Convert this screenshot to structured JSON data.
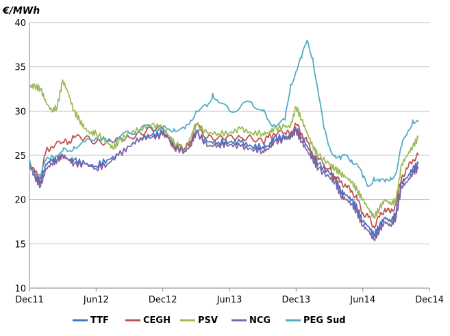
{
  "chart_data": {
    "type": "line",
    "title": "",
    "ylabel": "€/MWh",
    "xlabel": "",
    "ylim": [
      10,
      40
    ],
    "yticks": [
      10,
      15,
      20,
      25,
      30,
      35,
      40
    ],
    "xlim": [
      0,
      36
    ],
    "xticks": [
      {
        "label": "Dec11",
        "x": 0
      },
      {
        "label": "Jun12",
        "x": 6
      },
      {
        "label": "Dec12",
        "x": 12
      },
      {
        "label": "Jun13",
        "x": 18
      },
      {
        "label": "Dec13",
        "x": 24
      },
      {
        "label": "Jun14",
        "x": 30
      },
      {
        "label": "Dec14",
        "x": 36
      }
    ],
    "grid": true,
    "legend": "bottom",
    "series": [
      {
        "name": "TTF",
        "color": "#4472c4",
        "points": [
          [
            0,
            24
          ],
          [
            0.5,
            22.8
          ],
          [
            1,
            22
          ],
          [
            1.5,
            24
          ],
          [
            2,
            24.5
          ],
          [
            2.5,
            24.5
          ],
          [
            3,
            25
          ],
          [
            3.5,
            24.5
          ],
          [
            4,
            24.5
          ],
          [
            5,
            24
          ],
          [
            6,
            23.8
          ],
          [
            7,
            24.5
          ],
          [
            8,
            25
          ],
          [
            9,
            26
          ],
          [
            10,
            27
          ],
          [
            11,
            27.3
          ],
          [
            12,
            27.5
          ],
          [
            12.5,
            27
          ],
          [
            13,
            26
          ],
          [
            14,
            25.8
          ],
          [
            14.5,
            26.5
          ],
          [
            15,
            27.5
          ],
          [
            16,
            26.5
          ],
          [
            17,
            26.5
          ],
          [
            18,
            26.5
          ],
          [
            19,
            26.5
          ],
          [
            20,
            26
          ],
          [
            21,
            26
          ],
          [
            21.5,
            26
          ],
          [
            22,
            27
          ],
          [
            23,
            27
          ],
          [
            23.5,
            27.2
          ],
          [
            24,
            28
          ],
          [
            24.5,
            27
          ],
          [
            25,
            26
          ],
          [
            25.5,
            25
          ],
          [
            26,
            24
          ],
          [
            27,
            23
          ],
          [
            27.5,
            22.5
          ],
          [
            28,
            21
          ],
          [
            28.5,
            20.5
          ],
          [
            29,
            20
          ],
          [
            29.5,
            19
          ],
          [
            30,
            17.5
          ],
          [
            30.5,
            17
          ],
          [
            31,
            16
          ],
          [
            31.5,
            17
          ],
          [
            32,
            18
          ],
          [
            32.5,
            17.5
          ],
          [
            33,
            18.5
          ],
          [
            33.5,
            22
          ],
          [
            34,
            22.5
          ],
          [
            34.5,
            23.5
          ],
          [
            35,
            24
          ]
        ]
      },
      {
        "name": "CEGH",
        "color": "#c0504d",
        "points": [
          [
            0,
            24
          ],
          [
            0.5,
            23
          ],
          [
            1,
            22.5
          ],
          [
            1.5,
            25.5
          ],
          [
            2,
            26
          ],
          [
            3,
            26.5
          ],
          [
            3.5,
            26.5
          ],
          [
            4,
            27
          ],
          [
            5,
            27
          ],
          [
            6,
            26.5
          ],
          [
            7,
            26.5
          ],
          [
            8,
            27
          ],
          [
            9,
            27
          ],
          [
            10,
            27.5
          ],
          [
            11,
            28
          ],
          [
            12,
            28
          ],
          [
            12.5,
            27
          ],
          [
            13,
            26
          ],
          [
            14,
            25.8
          ],
          [
            14.5,
            26.5
          ],
          [
            15,
            28.5
          ],
          [
            16,
            27
          ],
          [
            17,
            27
          ],
          [
            18,
            27.2
          ],
          [
            19,
            27
          ],
          [
            20,
            27
          ],
          [
            21,
            26.5
          ],
          [
            21.5,
            27
          ],
          [
            22,
            27.5
          ],
          [
            23,
            27.5
          ],
          [
            23.5,
            27.5
          ],
          [
            24,
            28.5
          ],
          [
            24.5,
            27.5
          ],
          [
            25,
            26.5
          ],
          [
            25.5,
            25
          ],
          [
            26,
            24.5
          ],
          [
            27,
            23.5
          ],
          [
            27.5,
            22.5
          ],
          [
            28,
            22
          ],
          [
            28.5,
            21.5
          ],
          [
            29,
            21
          ],
          [
            29.5,
            20
          ],
          [
            30,
            18.5
          ],
          [
            30.5,
            18
          ],
          [
            31,
            17
          ],
          [
            31.5,
            18
          ],
          [
            32,
            19
          ],
          [
            32.5,
            18.5
          ],
          [
            33,
            19.5
          ],
          [
            33.5,
            22.5
          ],
          [
            34,
            23.5
          ],
          [
            34.5,
            24.5
          ],
          [
            35,
            25
          ]
        ]
      },
      {
        "name": "PSV",
        "color": "#9bbb59",
        "points": [
          [
            0,
            32.8
          ],
          [
            0.5,
            32.8
          ],
          [
            1,
            32.5
          ],
          [
            1.5,
            31
          ],
          [
            2,
            30
          ],
          [
            2.5,
            30.5
          ],
          [
            3,
            33.5
          ],
          [
            3.5,
            32
          ],
          [
            4,
            30
          ],
          [
            4.5,
            29
          ],
          [
            5,
            28
          ],
          [
            5.5,
            27.5
          ],
          [
            6,
            27.5
          ],
          [
            7,
            26.5
          ],
          [
            7.5,
            25.8
          ],
          [
            8,
            26.5
          ],
          [
            9,
            27.5
          ],
          [
            10,
            28
          ],
          [
            11,
            28.5
          ],
          [
            12,
            28
          ],
          [
            12.5,
            27.3
          ],
          [
            13,
            26.5
          ],
          [
            14,
            25.5
          ],
          [
            14.5,
            27
          ],
          [
            15,
            28.5
          ],
          [
            16,
            27.5
          ],
          [
            17,
            27.5
          ],
          [
            18,
            27.5
          ],
          [
            19,
            28
          ],
          [
            20,
            27.5
          ],
          [
            21,
            27.5
          ],
          [
            21.5,
            27.5
          ],
          [
            22,
            28
          ],
          [
            23,
            28.2
          ],
          [
            23.5,
            28.3
          ],
          [
            24,
            30.5
          ],
          [
            24.5,
            29
          ],
          [
            25,
            27.5
          ],
          [
            25.5,
            26
          ],
          [
            26,
            25
          ],
          [
            27,
            24
          ],
          [
            27.5,
            23.5
          ],
          [
            28,
            23
          ],
          [
            28.5,
            22.5
          ],
          [
            29,
            22
          ],
          [
            29.5,
            21
          ],
          [
            30,
            20
          ],
          [
            30.5,
            19
          ],
          [
            31,
            18
          ],
          [
            31.5,
            19
          ],
          [
            32,
            20
          ],
          [
            32.5,
            19.5
          ],
          [
            33,
            20
          ],
          [
            33.5,
            24
          ],
          [
            34,
            25
          ],
          [
            34.5,
            26
          ],
          [
            35,
            27
          ]
        ]
      },
      {
        "name": "NCG",
        "color": "#8064a2",
        "points": [
          [
            0,
            24
          ],
          [
            0.5,
            22.5
          ],
          [
            1,
            21.5
          ],
          [
            1.5,
            23.5
          ],
          [
            2,
            24
          ],
          [
            2.5,
            24.5
          ],
          [
            3,
            25
          ],
          [
            3.5,
            24.5
          ],
          [
            4,
            24
          ],
          [
            5,
            24
          ],
          [
            6,
            23.5
          ],
          [
            7,
            24
          ],
          [
            8,
            25
          ],
          [
            9,
            26
          ],
          [
            10,
            27
          ],
          [
            11,
            27
          ],
          [
            12,
            27.3
          ],
          [
            12.5,
            27
          ],
          [
            13,
            25.8
          ],
          [
            14,
            25.5
          ],
          [
            14.5,
            26
          ],
          [
            15,
            27.8
          ],
          [
            16,
            26
          ],
          [
            17,
            26.2
          ],
          [
            18,
            26.2
          ],
          [
            19,
            26
          ],
          [
            20,
            25.7
          ],
          [
            21,
            25.5
          ],
          [
            21.5,
            25.7
          ],
          [
            22,
            26.5
          ],
          [
            23,
            26.8
          ],
          [
            23.5,
            27
          ],
          [
            24,
            27.8
          ],
          [
            24.5,
            26.5
          ],
          [
            25,
            25.5
          ],
          [
            25.5,
            24.5
          ],
          [
            26,
            23.5
          ],
          [
            27,
            22.5
          ],
          [
            27.5,
            22
          ],
          [
            28,
            20.5
          ],
          [
            28.5,
            20
          ],
          [
            29,
            19.5
          ],
          [
            29.5,
            18.5
          ],
          [
            30,
            17
          ],
          [
            30.5,
            16.5
          ],
          [
            31,
            15.5
          ],
          [
            31.5,
            16.5
          ],
          [
            32,
            17.5
          ],
          [
            32.5,
            17
          ],
          [
            33,
            18
          ],
          [
            33.5,
            21.5
          ],
          [
            34,
            22
          ],
          [
            34.5,
            23
          ],
          [
            35,
            23.5
          ]
        ]
      },
      {
        "name": "PEG Sud",
        "color": "#4bacc6",
        "points": [
          [
            0,
            24.5
          ],
          [
            0.5,
            23
          ],
          [
            1,
            22.5
          ],
          [
            1.5,
            24.5
          ],
          [
            2,
            25
          ],
          [
            3,
            25.5
          ],
          [
            3.5,
            25.5
          ],
          [
            4,
            26
          ],
          [
            5,
            26.5
          ],
          [
            6,
            27
          ],
          [
            7,
            26.5
          ],
          [
            8,
            27
          ],
          [
            9,
            27.5
          ],
          [
            10,
            28
          ],
          [
            11,
            28.2
          ],
          [
            12,
            28
          ],
          [
            12.5,
            28
          ],
          [
            13,
            28
          ],
          [
            14,
            28
          ],
          [
            14.5,
            29
          ],
          [
            15,
            30
          ],
          [
            16,
            30.5
          ],
          [
            16.5,
            32
          ],
          [
            17,
            31
          ],
          [
            18,
            30
          ],
          [
            19,
            30.5
          ],
          [
            20,
            31
          ],
          [
            21,
            30
          ],
          [
            21.5,
            29
          ],
          [
            22,
            28.5
          ],
          [
            23,
            29
          ],
          [
            23.5,
            33
          ],
          [
            24,
            34.5
          ],
          [
            24.5,
            36
          ],
          [
            25,
            38
          ],
          [
            25.5,
            36
          ],
          [
            26,
            32
          ],
          [
            26.5,
            28
          ],
          [
            27,
            26
          ],
          [
            27.5,
            25
          ],
          [
            28,
            24.5
          ],
          [
            28.5,
            25
          ],
          [
            29,
            24.5
          ],
          [
            29.5,
            24
          ],
          [
            30,
            22.5
          ],
          [
            30.5,
            21.5
          ],
          [
            31,
            22.5
          ],
          [
            31.5,
            22
          ],
          [
            32,
            22
          ],
          [
            32.5,
            22.5
          ],
          [
            33,
            23
          ],
          [
            33.5,
            26
          ],
          [
            34,
            27.5
          ],
          [
            34.5,
            29
          ],
          [
            35,
            28.8
          ]
        ]
      }
    ]
  }
}
